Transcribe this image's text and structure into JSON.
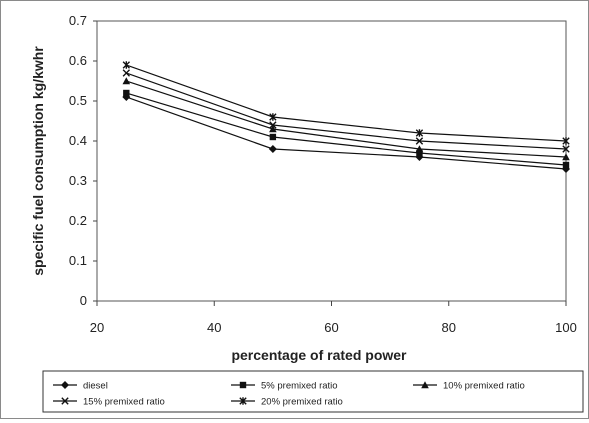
{
  "chart_data": {
    "type": "line",
    "title": "",
    "xlabel": "percentage of rated power",
    "ylabel": "specific fuel consumption kg/kwhr",
    "x": [
      25,
      50,
      75,
      100
    ],
    "xlim": [
      20,
      100
    ],
    "ylim": [
      0,
      0.7
    ],
    "xticks": [
      "20",
      "40",
      "60",
      "80",
      "100"
    ],
    "yticks": [
      "0",
      "0.1",
      "0.2",
      "0.3",
      "0.4",
      "0.5",
      "0.6",
      "0.7"
    ],
    "grid": false,
    "legend_position": "bottom",
    "series": [
      {
        "name": "diesel",
        "values": [
          0.51,
          0.38,
          0.36,
          0.33
        ],
        "marker": "diamond"
      },
      {
        "name": "5%  premixed ratio",
        "values": [
          0.52,
          0.41,
          0.37,
          0.34
        ],
        "marker": "square"
      },
      {
        "name": "10%  premixed ratio",
        "values": [
          0.55,
          0.43,
          0.38,
          0.36
        ],
        "marker": "triangle"
      },
      {
        "name": "15%  premixed ratio",
        "values": [
          0.57,
          0.44,
          0.4,
          0.38
        ],
        "marker": "x"
      },
      {
        "name": "20%  premixed ratio",
        "values": [
          0.59,
          0.46,
          0.42,
          0.4
        ],
        "marker": "asterisk"
      }
    ]
  }
}
